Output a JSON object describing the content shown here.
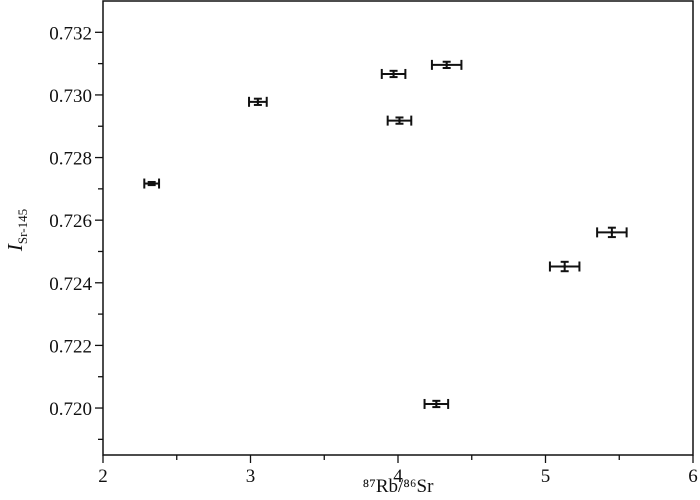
{
  "chart_data": {
    "type": "scatter",
    "x_label": "⁸⁷Rb/⁸⁶Sr",
    "y_label": {
      "main": "I",
      "sub": "Sr-145"
    },
    "xlim": [
      2,
      6
    ],
    "xticks": [
      2,
      3,
      4,
      5,
      6
    ],
    "xminorticks": [
      2.5,
      3.5,
      4.5,
      5.5
    ],
    "ylim": [
      0.7185,
      0.733
    ],
    "yticks": [
      {
        "value": 0.72,
        "label": "0.720"
      },
      0.722,
      0.724,
      0.726,
      0.728,
      {
        "value": 0.73,
        "label": "0.730"
      },
      0.732
    ],
    "yminorticks": [
      0.719,
      0.721,
      0.723,
      0.725,
      0.727,
      0.729,
      0.731
    ],
    "color": "#111111",
    "x": [
      2.33,
      3.05,
      3.97,
      4.33,
      4.01,
      5.45,
      5.13,
      4.26
    ],
    "values": [
      0.72717,
      0.72978,
      0.73067,
      0.73096,
      0.72918,
      0.72561,
      0.72452,
      0.72013
    ],
    "xerr": [
      0.05,
      0.06,
      0.08,
      0.1,
      0.08,
      0.1,
      0.1,
      0.08
    ],
    "yerr": [
      5e-05,
      0.0001,
      0.0001,
      0.0001,
      0.0001,
      0.00015,
      0.00015,
      0.0001
    ]
  }
}
